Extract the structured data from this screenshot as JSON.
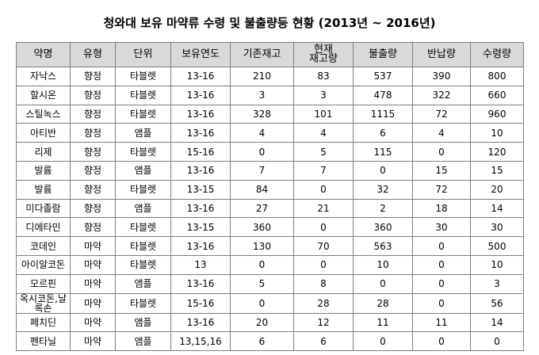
{
  "title": "청와대 보유 마약류 수령 및 불출량등 현황 (2013년 ~ 2016년)",
  "table": {
    "header": [
      "약명",
      "유형",
      "단위",
      "보유연도",
      "기존재고",
      "현재\n재고량",
      "불출량",
      "반납량",
      "수령량"
    ],
    "rows": [
      [
        "자낙스",
        "향정",
        "타블렛",
        "13-16",
        210,
        83,
        537,
        390,
        800
      ],
      [
        "할시온",
        "향정",
        "타블렛",
        "13-16",
        3,
        3,
        478,
        322,
        660
      ],
      [
        "스틸녹스",
        "향정",
        "타블렛",
        "13-16",
        328,
        101,
        1115,
        72,
        960
      ],
      [
        "아티반",
        "향정",
        "앰플",
        "13-16",
        4,
        4,
        6,
        4,
        10
      ],
      [
        "리제",
        "향정",
        "타블렛",
        "15-16",
        0,
        5,
        115,
        0,
        120
      ],
      [
        "발륨",
        "향정",
        "앰플",
        "13-16",
        7,
        7,
        0,
        15,
        15
      ],
      [
        "발륨",
        "향정",
        "타블렛",
        "13-15",
        84,
        0,
        32,
        72,
        20
      ],
      [
        "미다졸람",
        "향정",
        "앰플",
        "13-16",
        27,
        21,
        2,
        18,
        14
      ],
      [
        "디에타민",
        "향정",
        "타블렛",
        "13-15",
        360,
        0,
        360,
        30,
        30
      ],
      [
        "코데인",
        "마약",
        "타블렛",
        "13-16",
        130,
        70,
        563,
        0,
        500
      ],
      [
        "아이알코돈",
        "마약",
        "타블렛",
        "13",
        0,
        0,
        10,
        0,
        10
      ],
      [
        "모르핀",
        "마약",
        "앰플",
        "13-16",
        5,
        8,
        0,
        0,
        3
      ],
      [
        "옥시코돈,날록손",
        "마약",
        "타블렛",
        "15-16",
        0,
        28,
        28,
        0,
        56
      ],
      [
        "페치딘",
        "마약",
        "앰플",
        "13-16",
        20,
        12,
        11,
        11,
        14
      ],
      [
        "펜타닐",
        "마약",
        "앰플",
        "13,15,16",
        6,
        6,
        0,
        0,
        0
      ]
    ]
  }
}
